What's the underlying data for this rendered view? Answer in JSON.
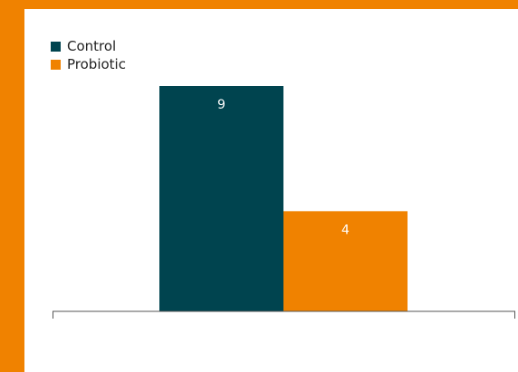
{
  "colors": {
    "frame": "#f08200",
    "background": "#ffffff",
    "control": "#00444f",
    "probiotic": "#f08200",
    "axis": "#555555",
    "label": "#ffffff"
  },
  "chart_data": {
    "type": "bar",
    "categories": [
      ""
    ],
    "series": [
      {
        "name": "Control",
        "values": [
          9
        ]
      },
      {
        "name": "Probiotic",
        "values": [
          4
        ]
      }
    ],
    "data_labels": [
      "9",
      "4"
    ],
    "title": "",
    "xlabel": "",
    "ylabel": "",
    "ylim": [
      0,
      9
    ],
    "grid": false,
    "legend_position": "top-left"
  }
}
